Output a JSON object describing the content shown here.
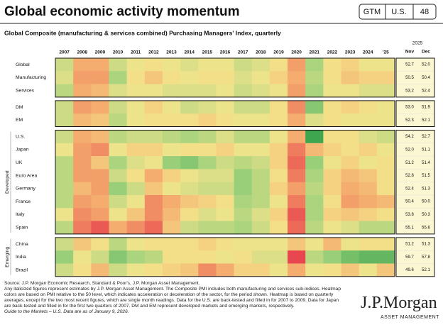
{
  "header": {
    "title": "Global economic activity momentum",
    "badges": [
      "GTM",
      "U.S.",
      "48"
    ]
  },
  "chart_data": {
    "type": "heatmap",
    "title": "Global Composite (manufacturing & services combined) Purchasing Managers' Index, quarterly",
    "categories": [
      "2007",
      "2008",
      "2009",
      "2010",
      "2011",
      "2012",
      "2013",
      "2014",
      "2015",
      "2016",
      "2017",
      "2018",
      "2019",
      "2020",
      "2021",
      "2022",
      "2023",
      "2024",
      "'25"
    ],
    "latest_header": "2025",
    "latest_columns": [
      "Nov",
      "Dec"
    ],
    "colors": [
      "#e8474f",
      "#f4a36a",
      "#f4e58c",
      "#9fd17c",
      "#3fa650"
    ],
    "groups": [
      {
        "rows": [
          {
            "name": "Global",
            "values": [
              54,
              47,
              47,
              54,
              52,
              51,
              52,
              53,
              52,
              52,
              54,
              53,
              51,
              46,
              56,
              51,
              50,
              52,
              52
            ],
            "latest": [
              "52.7",
              "52.0"
            ]
          },
          {
            "name": "Manufacturing",
            "values": [
              53,
              46,
              46,
              56,
              51,
              49,
              51,
              52,
              51,
              51,
              53,
              52,
              50,
              47,
              55,
              51,
              49,
              50,
              50
            ],
            "latest": [
              "50.5",
              "50.4"
            ]
          },
          {
            "name": "Services",
            "values": [
              55,
              47,
              48,
              53,
              52,
              52,
              53,
              53,
              53,
              52,
              54,
              53,
              52,
              46,
              56,
              52,
              52,
              53,
              53
            ],
            "latest": [
              "53.2",
              "52.4"
            ]
          }
        ]
      },
      {
        "rows": [
          {
            "name": "DM",
            "values": [
              54,
              46,
              47,
              54,
              52,
              50,
              52,
              54,
              53,
              52,
              54,
              54,
              51,
              45,
              58,
              51,
              50,
              51,
              52
            ],
            "latest": [
              "53.0",
              "51.9"
            ]
          },
          {
            "name": "EM",
            "values": [
              54,
              48,
              49,
              55,
              52,
              51,
              51,
              51,
              50,
              51,
              52,
              52,
              51,
              47,
              53,
              51,
              52,
              52,
              52
            ],
            "latest": [
              "52.3",
              "52.1"
            ]
          }
        ]
      },
      {
        "name": "Developed",
        "rows": [
          {
            "name": "U.S.",
            "values": [
              54,
              47,
              48,
              55,
              54,
              54,
              55,
              56,
              55,
              53,
              55,
              55,
              52,
              47,
              62,
              51,
              51,
              53,
              54
            ],
            "latest": [
              "54.2",
              "52.7"
            ]
          },
          {
            "name": "Japan",
            "values": [
              52,
              46,
              45,
              52,
              50,
              50,
              52,
              51,
              51,
              50,
              52,
              52,
              50,
              44,
              48,
              50,
              51,
              50,
              52
            ],
            "latest": [
              "52.0",
              "51.1"
            ]
          },
          {
            "name": "UK",
            "values": [
              55,
              46,
              49,
              56,
              53,
              52,
              57,
              58,
              56,
              54,
              55,
              54,
              50,
              43,
              57,
              52,
              50,
              52,
              51
            ],
            "latest": [
              "51.2",
              "51.4"
            ]
          },
          {
            "name": "Euro Area",
            "values": [
              55,
              46,
              46,
              54,
              51,
              47,
              50,
              52,
              53,
              53,
              57,
              55,
              51,
              44,
              56,
              50,
              48,
              49,
              51
            ],
            "latest": [
              "52.8",
              "51.5"
            ]
          },
          {
            "name": "Germany",
            "values": [
              55,
              48,
              46,
              57,
              54,
              49,
              52,
              53,
              54,
              54,
              57,
              55,
              50,
              46,
              55,
              50,
              47,
              48,
              51
            ],
            "latest": [
              "52.4",
              "51.3"
            ]
          },
          {
            "name": "France",
            "values": [
              55,
              46,
              47,
              54,
              52,
              45,
              47,
              49,
              50,
              51,
              56,
              55,
              52,
              44,
              56,
              51,
              46,
              47,
              48
            ],
            "latest": [
              "50.4",
              "50.0"
            ]
          },
          {
            "name": "Italy",
            "values": [
              52,
              45,
              46,
              52,
              49,
              45,
              48,
              51,
              53,
              52,
              55,
              53,
              50,
              42,
              56,
              50,
              49,
              50,
              51
            ],
            "latest": [
              "53.8",
              "50.3"
            ]
          },
          {
            "name": "Spain",
            "values": [
              55,
              44,
              42,
              47,
              45,
              43,
              49,
              54,
              55,
              55,
              56,
              54,
              51,
              43,
              55,
              52,
              53,
              55,
              55
            ],
            "latest": [
              "55.1",
              "55.6"
            ]
          }
        ]
      },
      {
        "name": "Emerging",
        "rows": [
          {
            "name": "China",
            "values": [
              54,
              49,
              51,
              55,
              52,
              51,
              51,
              51,
              50,
              51,
              52,
              52,
              52,
              49,
              52,
              48,
              52,
              51,
              51
            ],
            "latest": [
              "51.2",
              "51.3"
            ]
          },
          {
            "name": "India",
            "values": [
              57,
              52,
              54,
              58,
              56,
              55,
              51,
              51,
              51,
              52,
              51,
              53,
              53,
              41,
              55,
              57,
              59,
              60,
              60
            ],
            "latest": [
              "59.7",
              "57.8"
            ]
          },
          {
            "name": "Brazil",
            "values": [
              54,
              51,
              48,
              54,
              52,
              51,
              50,
              49,
              45,
              47,
              50,
              50,
              52,
              47,
              52,
              51,
              49,
              52,
              49
            ],
            "latest": [
              "49.6",
              "52.1"
            ]
          }
        ]
      }
    ]
  },
  "footer": {
    "source": "Source: J.P. Morgan Economic Research, Standard & Poor's, J.P. Morgan Asset Management.",
    "notes": "Any italicized figures represent estimates by J.P. Morgan Asset Management. The Composite PMI includes both manufacturing and services sub-indices. Heatmap colors are based on PMI relative to the 50 level, which indicates acceleration or deceleration of the sector, for the period shown. Heatmap is based on quarterly averages, except for the two most recent figures, which are single month readings. Data for the U.S. are back-tested and filled in for 2007 to 2009. Data for Japan are back-tested and filled in for the first two quarters of 2007. DM and EM represent developed markets and emerging markets, respectively.",
    "guide": "Guide to the Markets – U.S. Data are as of January 9, 2026."
  },
  "logo": {
    "name": "J.P.Morgan",
    "tagline": "ASSET MANAGEMENT"
  }
}
